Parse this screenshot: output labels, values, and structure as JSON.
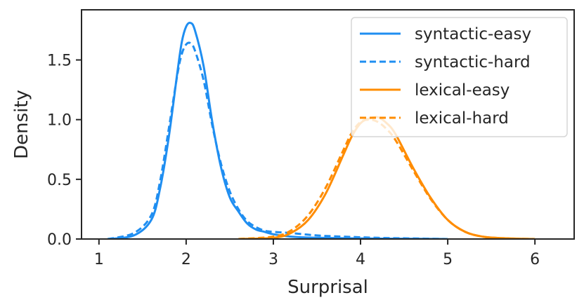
{
  "chart_data": {
    "type": "line",
    "title": "",
    "xlabel": "Surprisal",
    "ylabel": "Density",
    "xlim": [
      0.8,
      6.45
    ],
    "ylim": [
      0,
      1.92
    ],
    "xticks": [
      "1",
      "2",
      "3",
      "4",
      "5",
      "6"
    ],
    "yticks": [
      "0.0",
      "0.5",
      "1.0",
      "1.5"
    ],
    "legend_position": "top-right",
    "grid": false,
    "series": [
      {
        "name": "syntactic-easy",
        "color": "#1f8ef1",
        "style": "solid",
        "x": [
          1.1,
          1.4,
          1.6,
          1.7,
          1.8,
          1.9,
          1.95,
          2.0,
          2.05,
          2.1,
          2.2,
          2.3,
          2.4,
          2.5,
          2.6,
          2.7,
          2.8,
          2.9,
          3.0,
          3.2,
          3.5,
          4.0,
          4.5,
          5.0
        ],
        "y": [
          0.0,
          0.03,
          0.16,
          0.42,
          0.85,
          1.4,
          1.65,
          1.78,
          1.81,
          1.75,
          1.45,
          0.98,
          0.6,
          0.35,
          0.23,
          0.13,
          0.08,
          0.06,
          0.04,
          0.02,
          0.01,
          0.005,
          0.002,
          0.0
        ]
      },
      {
        "name": "syntactic-hard",
        "color": "#1f8ef1",
        "style": "dashed",
        "x": [
          1.1,
          1.4,
          1.6,
          1.7,
          1.8,
          1.9,
          1.95,
          2.0,
          2.05,
          2.1,
          2.2,
          2.3,
          2.4,
          2.5,
          2.6,
          2.7,
          2.8,
          2.9,
          3.0,
          3.2,
          3.5,
          3.8,
          4.2,
          4.6,
          5.0
        ],
        "y": [
          0.0,
          0.05,
          0.2,
          0.48,
          0.92,
          1.38,
          1.55,
          1.63,
          1.64,
          1.58,
          1.33,
          0.95,
          0.63,
          0.4,
          0.25,
          0.15,
          0.1,
          0.07,
          0.06,
          0.05,
          0.03,
          0.02,
          0.01,
          0.005,
          0.0
        ]
      },
      {
        "name": "lexical-easy",
        "color": "#ff8c00",
        "style": "solid",
        "x": [
          2.6,
          3.0,
          3.2,
          3.4,
          3.6,
          3.8,
          3.9,
          4.0,
          4.1,
          4.2,
          4.3,
          4.4,
          4.6,
          4.8,
          5.0,
          5.2,
          5.4,
          5.6,
          5.8,
          6.0
        ],
        "y": [
          0.0,
          0.01,
          0.05,
          0.16,
          0.38,
          0.7,
          0.86,
          0.97,
          1.01,
          1.02,
          0.97,
          0.88,
          0.6,
          0.35,
          0.16,
          0.06,
          0.02,
          0.008,
          0.003,
          0.0
        ]
      },
      {
        "name": "lexical-hard",
        "color": "#ff8c00",
        "style": "dashed",
        "x": [
          2.6,
          3.0,
          3.2,
          3.4,
          3.6,
          3.8,
          3.9,
          4.0,
          4.1,
          4.2,
          4.3,
          4.4,
          4.6,
          4.8,
          5.0,
          5.2,
          5.4,
          5.6,
          5.8,
          6.0
        ],
        "y": [
          0.0,
          0.02,
          0.07,
          0.2,
          0.43,
          0.74,
          0.89,
          0.98,
          1.0,
          0.98,
          0.92,
          0.83,
          0.58,
          0.34,
          0.16,
          0.06,
          0.02,
          0.008,
          0.003,
          0.0
        ]
      }
    ]
  }
}
